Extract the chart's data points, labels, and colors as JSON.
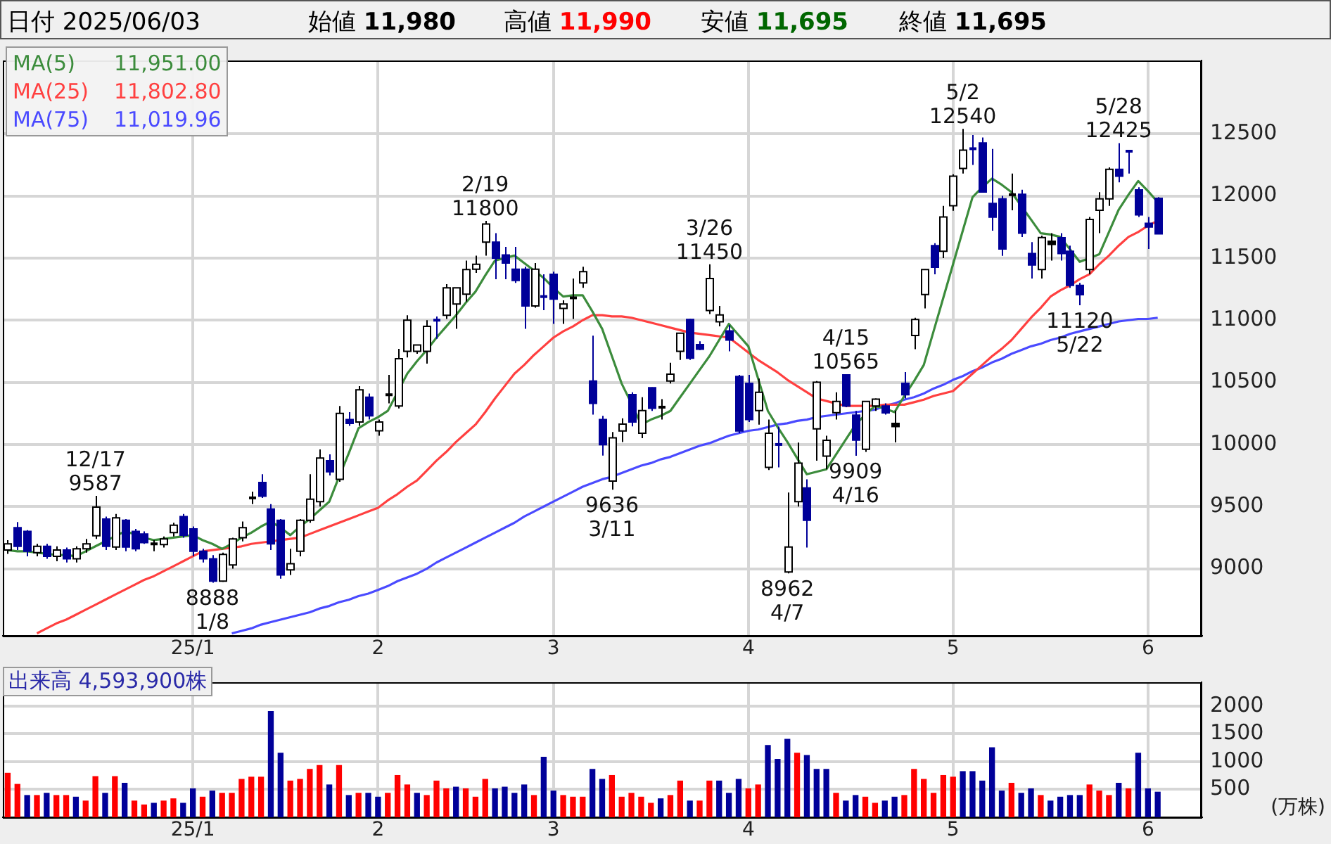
{
  "chart_data": [
    {
      "type": "candlestick",
      "categories": [
        null,
        null,
        null,
        null,
        null,
        null,
        null,
        null,
        null,
        null,
        null,
        null,
        null,
        null,
        null,
        null,
        null,
        null,
        null,
        "25/1",
        null,
        null,
        null,
        null,
        null,
        null,
        null,
        null,
        null,
        null,
        null,
        null,
        null,
        null,
        null,
        null,
        null,
        null,
        "2",
        null,
        null,
        null,
        null,
        null,
        null,
        null,
        null,
        null,
        null,
        null,
        null,
        null,
        null,
        null,
        null,
        null,
        "3",
        null,
        null,
        null,
        null,
        null,
        null,
        null,
        null,
        null,
        null,
        null,
        null,
        null,
        null,
        null,
        null,
        null,
        null,
        null,
        "4",
        null,
        null,
        null,
        null,
        null,
        null,
        null,
        null,
        null,
        null,
        null,
        null,
        null,
        null,
        null,
        null,
        null,
        null,
        null,
        null,
        "5",
        null,
        null,
        null,
        null,
        null,
        null,
        null,
        null,
        null,
        null,
        null,
        null,
        null,
        null,
        null,
        null,
        null,
        null,
        null,
        "6",
        null
      ],
      "ohlc": [
        [
          9150,
          9230,
          9120,
          9200
        ],
        [
          9330,
          9375,
          9150,
          9180
        ],
        [
          9300,
          9310,
          9100,
          9140
        ],
        [
          9130,
          9200,
          9100,
          9180
        ],
        [
          9180,
          9200,
          9080,
          9100
        ],
        [
          9100,
          9180,
          9060,
          9150
        ],
        [
          9150,
          9170,
          9050,
          9080
        ],
        [
          9080,
          9180,
          9050,
          9160
        ],
        [
          9160,
          9240,
          9130,
          9200
        ],
        [
          9265,
          9587,
          9240,
          9496
        ],
        [
          9400,
          9420,
          9150,
          9180
        ],
        [
          9175,
          9440,
          9150,
          9410
        ],
        [
          9390,
          9400,
          9140,
          9175
        ],
        [
          9300,
          9320,
          9140,
          9160
        ],
        [
          9280,
          9300,
          9200,
          9210
        ],
        [
          9180,
          9230,
          9140,
          9200
        ],
        [
          9195,
          9260,
          9170,
          9240
        ],
        [
          9290,
          9370,
          9260,
          9350
        ],
        [
          9420,
          9440,
          9250,
          9270
        ],
        [
          9320,
          9340,
          9100,
          9140
        ],
        [
          9140,
          9160,
          9050,
          9080
        ],
        [
          9080,
          9110,
          8888,
          8900
        ],
        [
          8900,
          9130,
          8895,
          9115
        ],
        [
          9030,
          9250,
          9000,
          9240
        ],
        [
          9250,
          9380,
          9220,
          9330
        ],
        [
          9560,
          9620,
          9520,
          9570
        ],
        [
          9694,
          9760,
          9570,
          9584
        ],
        [
          9480,
          9520,
          9150,
          9200
        ],
        [
          9390,
          9400,
          8920,
          8950
        ],
        [
          8990,
          9160,
          8950,
          9040
        ],
        [
          9140,
          9400,
          9100,
          9390
        ],
        [
          9390,
          9760,
          9370,
          9560
        ],
        [
          9540,
          9960,
          9500,
          9890
        ],
        [
          9870,
          9920,
          9750,
          9780
        ],
        [
          9720,
          10310,
          9700,
          10250
        ],
        [
          10200,
          10260,
          10150,
          10170
        ],
        [
          10180,
          10470,
          10150,
          10440
        ],
        [
          10380,
          10410,
          10200,
          10230
        ],
        [
          10110,
          10200,
          10070,
          10180
        ],
        [
          10390,
          10560,
          10330,
          10400
        ],
        [
          10310,
          10770,
          10290,
          10690
        ],
        [
          10750,
          11040,
          10700,
          11000
        ],
        [
          10750,
          10800,
          10730,
          10800
        ],
        [
          10750,
          11000,
          10650,
          10950
        ],
        [
          11000,
          11030,
          10850,
          10980
        ],
        [
          11040,
          11290,
          11010,
          11260
        ],
        [
          11130,
          11260,
          10930,
          11260
        ],
        [
          11210,
          11480,
          11150,
          11408
        ],
        [
          11410,
          11520,
          11380,
          11450
        ],
        [
          11628,
          11800,
          11520,
          11774
        ],
        [
          11628,
          11700,
          11330,
          11500
        ],
        [
          11525,
          11590,
          11330,
          11460
        ],
        [
          11410,
          11590,
          11300,
          11320
        ],
        [
          11410,
          11430,
          10930,
          11115
        ],
        [
          11115,
          11460,
          11100,
          11410
        ],
        [
          11190,
          11370,
          11080,
          11170
        ],
        [
          11370,
          11390,
          10970,
          11170
        ],
        [
          11095,
          11160,
          10970,
          11130
        ],
        [
          11175,
          11335,
          11010,
          11180
        ],
        [
          11300,
          11430,
          11260,
          11390
        ],
        [
          10510,
          10875,
          10240,
          10330
        ],
        [
          10200,
          10230,
          9910,
          9998
        ],
        [
          9705,
          10100,
          9636,
          10053
        ],
        [
          10108,
          10210,
          10020,
          10163
        ],
        [
          10401,
          10420,
          10145,
          10181
        ],
        [
          10090,
          10380,
          10050,
          10273
        ],
        [
          10456,
          10460,
          10270,
          10291
        ],
        [
          10290,
          10365,
          10200,
          10300
        ],
        [
          10511,
          10657,
          10490,
          10566
        ],
        [
          10749,
          10900,
          10680,
          10895
        ],
        [
          11005,
          11010,
          10680,
          10694
        ],
        [
          10804,
          10830,
          10760,
          10767
        ],
        [
          11078,
          11450,
          11050,
          11335
        ],
        [
          10987,
          11115,
          10950,
          11042
        ],
        [
          10914,
          10960,
          10750,
          10840
        ],
        [
          10547,
          10560,
          10090,
          10108
        ],
        [
          10492,
          10560,
          10180,
          10200
        ],
        [
          10273,
          10530,
          10160,
          10420
        ],
        [
          9815,
          10200,
          9795,
          10090
        ],
        [
          10000,
          10144,
          9815,
          9980
        ],
        [
          8974,
          9613,
          8962,
          9174
        ],
        [
          9540,
          10015,
          9500,
          9850
        ],
        [
          9650,
          9720,
          9170,
          9390
        ],
        [
          10126,
          10510,
          9870,
          10500
        ],
        [
          9906,
          10070,
          9800,
          10034
        ],
        [
          10255,
          10420,
          10200,
          10346
        ],
        [
          10560,
          10565,
          10300,
          10310
        ],
        [
          10236,
          10270,
          9909,
          10035
        ],
        [
          9961,
          10350,
          9940,
          10346
        ],
        [
          10309,
          10370,
          10270,
          10364
        ],
        [
          10309,
          10330,
          10240,
          10254
        ],
        [
          10144,
          10273,
          10016,
          10170
        ],
        [
          10492,
          10583,
          10370,
          10400
        ],
        [
          10877,
          11020,
          10767,
          11005
        ],
        [
          11206,
          11410,
          11095,
          11408
        ],
        [
          11600,
          11620,
          11370,
          11426
        ],
        [
          11555,
          11920,
          11500,
          11830
        ],
        [
          11921,
          12175,
          11880,
          12159
        ],
        [
          12221,
          12540,
          12180,
          12368
        ],
        [
          12380,
          12490,
          12250,
          12360
        ],
        [
          12426,
          12470,
          12030,
          12031
        ],
        [
          11939,
          12378,
          11720,
          11829
        ],
        [
          11976,
          12000,
          11518,
          11573
        ],
        [
          12000,
          12180,
          11885,
          12010
        ],
        [
          12013,
          12050,
          11670,
          11700
        ],
        [
          11536,
          11628,
          11335,
          11445
        ],
        [
          11408,
          11680,
          11335,
          11665
        ],
        [
          11610,
          11700,
          11480,
          11635
        ],
        [
          11664,
          11700,
          11480,
          11536
        ],
        [
          11555,
          11600,
          11260,
          11280
        ],
        [
          11280,
          11300,
          11120,
          11205
        ],
        [
          11408,
          11830,
          11370,
          11811
        ],
        [
          11884,
          12030,
          11700,
          11976
        ],
        [
          11976,
          12230,
          11920,
          12214
        ],
        [
          12214,
          12425,
          12110,
          12159
        ],
        [
          12360,
          12370,
          12180,
          12340
        ],
        [
          12049,
          12070,
          11830,
          11848
        ],
        [
          11780,
          11830,
          11573,
          11750
        ],
        [
          11980,
          11990,
          11695,
          11695
        ]
      ],
      "colors": [
        "#ffffff",
        "#000099",
        "#000099",
        "#ffffff",
        "#000099",
        "#ffffff",
        "#000099",
        "#ffffff",
        "#ffffff",
        "#ffffff",
        "#000099",
        "#ffffff",
        "#000099",
        "#000099",
        "#000099",
        "#000000",
        "#ffffff",
        "#ffffff",
        "#000099",
        "#000099",
        "#000099",
        "#000099",
        "#ffffff",
        "#ffffff",
        "#ffffff",
        "#000000",
        "#000099",
        "#000099",
        "#000099",
        "#ffffff",
        "#ffffff",
        "#ffffff",
        "#ffffff",
        "#000099",
        "#ffffff",
        "#000099",
        "#ffffff",
        "#000099",
        "#ffffff",
        "#000000",
        "#ffffff",
        "#ffffff",
        "#ffffff",
        "#ffffff",
        "#000099",
        "#ffffff",
        "#ffffff",
        "#ffffff",
        "#ffffff",
        "#ffffff",
        "#000099",
        "#000099",
        "#000099",
        "#000099",
        "#ffffff",
        "#000099",
        "#000099",
        "#ffffff",
        "#000000",
        "#ffffff",
        "#000099",
        "#000099",
        "#ffffff",
        "#ffffff",
        "#000099",
        "#ffffff",
        "#000099",
        "#000000",
        "#ffffff",
        "#ffffff",
        "#000099",
        "#000099",
        "#ffffff",
        "#ffffff",
        "#000099",
        "#000099",
        "#000099",
        "#ffffff",
        "#ffffff",
        "#000099",
        "#ffffff",
        "#ffffff",
        "#000099",
        "#ffffff",
        "#ffffff",
        "#ffffff",
        "#000099",
        "#000099",
        "#ffffff",
        "#ffffff",
        "#000099",
        "#000000",
        "#000099",
        "#ffffff",
        "#ffffff",
        "#000099",
        "#ffffff",
        "#ffffff",
        "#ffffff",
        "#000099",
        "#000099",
        "#000099",
        "#000099",
        "#000000",
        "#000099",
        "#000099",
        "#ffffff",
        "#000000",
        "#000099",
        "#000099",
        "#000099",
        "#ffffff",
        "#ffffff",
        "#ffffff",
        "#000099",
        "#000099",
        "#000099",
        "#000099",
        "#000099"
      ],
      "series": [
        {
          "name": "MA(5) 11,951.00",
          "type": "line",
          "color": "#3c8c3c",
          "values": [
            9150,
            9140,
            9140,
            9130,
            9120,
            9110,
            9110,
            9100,
            9140,
            9180,
            9220,
            9260,
            9300,
            9280,
            9250,
            9230,
            9240,
            9250,
            9260,
            9270,
            9230,
            9200,
            9160,
            9200,
            9250,
            9290,
            9340,
            9380,
            9330,
            9270,
            9340,
            9400,
            9470,
            9540,
            9740,
            9930,
            10130,
            10180,
            10220,
            10270,
            10420,
            10570,
            10670,
            10760,
            10860,
            10950,
            11040,
            11140,
            11230,
            11360,
            11480,
            11500,
            11520,
            11460,
            11400,
            11340,
            11260,
            11190,
            11200,
            11200,
            11070,
            10930,
            10710,
            10490,
            10330,
            10160,
            10200,
            10230,
            10270,
            10380,
            10490,
            10600,
            10710,
            10840,
            10970,
            10880,
            10790,
            10530,
            10270,
            10140,
            10020,
            9890,
            9760,
            9780,
            9800,
            9920,
            10040,
            10160,
            10240,
            10310,
            10290,
            10260,
            10390,
            10510,
            10640,
            10910,
            11180,
            11450,
            11720,
            11990,
            12070,
            12140,
            12090,
            12030,
            11920,
            11810,
            11700,
            11690,
            11670,
            11570,
            11470,
            11500,
            11530,
            11710,
            11890,
            12010,
            12120,
            12040,
            11950
          ]
        },
        {
          "name": "MA(25) 11,802.80",
          "type": "line",
          "color": "#ff4040",
          "values": [
            null,
            null,
            null,
            8480,
            8520,
            8560,
            8590,
            8630,
            8670,
            8710,
            8750,
            8790,
            8830,
            8870,
            8910,
            8940,
            8980,
            9020,
            9060,
            9100,
            9140,
            9150,
            9160,
            9170,
            9180,
            9200,
            9210,
            9220,
            9230,
            9240,
            9250,
            9280,
            9310,
            9340,
            9370,
            9400,
            9430,
            9460,
            9490,
            9550,
            9600,
            9660,
            9710,
            9790,
            9870,
            9940,
            10020,
            10090,
            10160,
            10260,
            10370,
            10470,
            10570,
            10640,
            10720,
            10790,
            10860,
            10910,
            10950,
            11000,
            11040,
            11040,
            11030,
            11030,
            11020,
            11000,
            10980,
            10960,
            10940,
            10920,
            10900,
            10890,
            10880,
            10870,
            10860,
            10800,
            10740,
            10680,
            10630,
            10580,
            10520,
            10470,
            10420,
            10370,
            10350,
            10330,
            10310,
            10310,
            10310,
            10310,
            10320,
            10320,
            10320,
            10340,
            10360,
            10390,
            10410,
            10430,
            10500,
            10570,
            10640,
            10710,
            10770,
            10840,
            10930,
            11020,
            11100,
            11190,
            11240,
            11280,
            11330,
            11370,
            11450,
            11520,
            11600,
            11670,
            11710,
            11760,
            11800
          ]
        },
        {
          "name": "MA(75) 11,019.96",
          "type": "line",
          "color": "#4a4aff",
          "values": [
            null,
            null,
            null,
            null,
            null,
            null,
            null,
            null,
            null,
            null,
            null,
            null,
            null,
            null,
            null,
            null,
            null,
            null,
            null,
            null,
            null,
            null,
            null,
            8480,
            8500,
            8520,
            8550,
            8570,
            8590,
            8610,
            8630,
            8650,
            8680,
            8700,
            8730,
            8750,
            8780,
            8800,
            8830,
            8860,
            8900,
            8930,
            8960,
            9000,
            9050,
            9090,
            9130,
            9170,
            9210,
            9250,
            9290,
            9330,
            9370,
            9420,
            9460,
            9500,
            9540,
            9580,
            9620,
            9660,
            9690,
            9720,
            9740,
            9770,
            9800,
            9830,
            9850,
            9880,
            9900,
            9930,
            9960,
            9990,
            10010,
            10040,
            10070,
            10090,
            10110,
            10120,
            10140,
            10160,
            10170,
            10190,
            10200,
            10220,
            10230,
            10240,
            10250,
            10260,
            10270,
            10280,
            10310,
            10330,
            10360,
            10380,
            10410,
            10450,
            10480,
            10520,
            10550,
            10590,
            10620,
            10660,
            10690,
            10730,
            10760,
            10790,
            10810,
            10840,
            10860,
            10890,
            10910,
            10930,
            10950,
            10970,
            10990,
            11000,
            11010,
            11010,
            11020
          ]
        }
      ],
      "ylim": [
        8460,
        13090
      ],
      "yticks": [
        9000,
        9500,
        10000,
        10500,
        11000,
        11500,
        12000,
        12500
      ],
      "grid": true,
      "annotations": [
        "日付 2025/06/03",
        "始値 11,980",
        "高値 11,990",
        "安値 11,695",
        "終値 11,695",
        {
          "text": "12/17\n9587",
          "y": 9587
        },
        {
          "text": "8888\n1/8",
          "y": 8888
        },
        {
          "text": "2/19\n11800",
          "y": 11800
        },
        {
          "text": "9636\n3/11",
          "y": 9636
        },
        {
          "text": "3/26\n11450",
          "y": 11450
        },
        {
          "text": "8962\n4/7",
          "y": 8962
        },
        {
          "text": "4/15\n10565",
          "y": 10565
        },
        {
          "text": "9909\n4/16",
          "y": 9909
        },
        {
          "text": "5/2\n12540",
          "y": 12540
        },
        {
          "text": "11120\n5/22",
          "y": 11120
        },
        {
          "text": "5/28\n12425",
          "y": 12425
        }
      ]
    },
    {
      "type": "bar",
      "categories": [
        null,
        null,
        null,
        null,
        null,
        null,
        null,
        null,
        null,
        null,
        null,
        null,
        null,
        null,
        null,
        null,
        null,
        null,
        null,
        "25/1",
        null,
        null,
        null,
        null,
        null,
        null,
        null,
        null,
        null,
        null,
        null,
        null,
        null,
        null,
        null,
        null,
        null,
        null,
        "2",
        null,
        null,
        null,
        null,
        null,
        null,
        null,
        null,
        null,
        null,
        null,
        null,
        null,
        null,
        null,
        null,
        null,
        "3",
        null,
        null,
        null,
        null,
        null,
        null,
        null,
        null,
        null,
        null,
        null,
        null,
        null,
        null,
        null,
        null,
        null,
        null,
        null,
        "4",
        null,
        null,
        null,
        null,
        null,
        null,
        null,
        null,
        null,
        null,
        null,
        null,
        null,
        null,
        null,
        null,
        null,
        null,
        null,
        null,
        "5",
        null,
        null,
        null,
        null,
        null,
        null,
        null,
        null,
        null,
        null,
        null,
        null,
        null,
        null,
        null,
        null,
        null,
        null,
        null,
        "6",
        null
      ],
      "values": [
        800,
        600,
        400,
        400,
        440,
        400,
        400,
        370,
        300,
        740,
        440,
        740,
        620,
        300,
        230,
        260,
        300,
        340,
        260,
        520,
        370,
        480,
        440,
        440,
        690,
        730,
        730,
        1910,
        1160,
        660,
        690,
        870,
        940,
        590,
        940,
        400,
        440,
        440,
        370,
        440,
        760,
        590,
        440,
        400,
        660,
        520,
        550,
        520,
        370,
        690,
        520,
        550,
        440,
        590,
        400,
        1090,
        480,
        400,
        370,
        370,
        870,
        690,
        760,
        370,
        440,
        370,
        260,
        340,
        400,
        660,
        300,
        300,
        660,
        660,
        440,
        690,
        520,
        590,
        1300,
        1050,
        1410,
        1160,
        1120,
        870,
        870,
        440,
        300,
        400,
        370,
        260,
        300,
        370,
        400,
        870,
        690,
        440,
        760,
        730,
        830,
        830,
        660,
        1260,
        480,
        620,
        440,
        520,
        400,
        300,
        370,
        400,
        400,
        590,
        480,
        400,
        620,
        520,
        1160,
        520,
        460
      ],
      "colors": [
        "#ff0000",
        "#ff0000",
        "#000099",
        "#ff0000",
        "#000099",
        "#ff0000",
        "#ff0000",
        "#000099",
        "#ff0000",
        "#ff0000",
        "#000099",
        "#ff0000",
        "#000099",
        "#ff0000",
        "#ff0000",
        "#000099",
        "#ff0000",
        "#ff0000",
        "#000099",
        "#000099",
        "#ff0000",
        "#000099",
        "#ff0000",
        "#ff0000",
        "#ff0000",
        "#ff0000",
        "#ff0000",
        "#000099",
        "#000099",
        "#ff0000",
        "#ff0000",
        "#ff0000",
        "#ff0000",
        "#000099",
        "#ff0000",
        "#000099",
        "#ff0000",
        "#000099",
        "#000099",
        "#ff0000",
        "#ff0000",
        "#ff0000",
        "#000099",
        "#ff0000",
        "#ff0000",
        "#ff0000",
        "#000099",
        "#ff0000",
        "#ff0000",
        "#ff0000",
        "#000099",
        "#000099",
        "#000099",
        "#000099",
        "#ff0000",
        "#000099",
        "#000099",
        "#ff0000",
        "#ff0000",
        "#ff0000",
        "#000099",
        "#000099",
        "#ff0000",
        "#ff0000",
        "#ff0000",
        "#ff0000",
        "#ff0000",
        "#000099",
        "#ff0000",
        "#ff0000",
        "#000099",
        "#ff0000",
        "#ff0000",
        "#000099",
        "#000099",
        "#000099",
        "#ff0000",
        "#ff0000",
        "#000099",
        "#000099",
        "#000099",
        "#ff0000",
        "#000099",
        "#000099",
        "#000099",
        "#ff0000",
        "#000099",
        "#000099",
        "#ff0000",
        "#ff0000",
        "#000099",
        "#000099",
        "#ff0000",
        "#ff0000",
        "#ff0000",
        "#ff0000",
        "#ff0000",
        "#ff0000",
        "#000099",
        "#000099",
        "#000099",
        "#000099",
        "#000099",
        "#ff0000",
        "#000099",
        "#000099",
        "#ff0000",
        "#000099",
        "#000099",
        "#000099",
        "#000099",
        "#ff0000",
        "#ff0000",
        "#ff0000",
        "#000099",
        "#ff0000",
        "#000099",
        "#000099",
        "#000099"
      ],
      "ylim": [
        0,
        2430
      ],
      "yticks": [
        500,
        1000,
        1500,
        2000
      ],
      "ylabel": "(万株)",
      "grid": true,
      "annotations": [
        "出来高 4,593,900株"
      ]
    }
  ]
}
